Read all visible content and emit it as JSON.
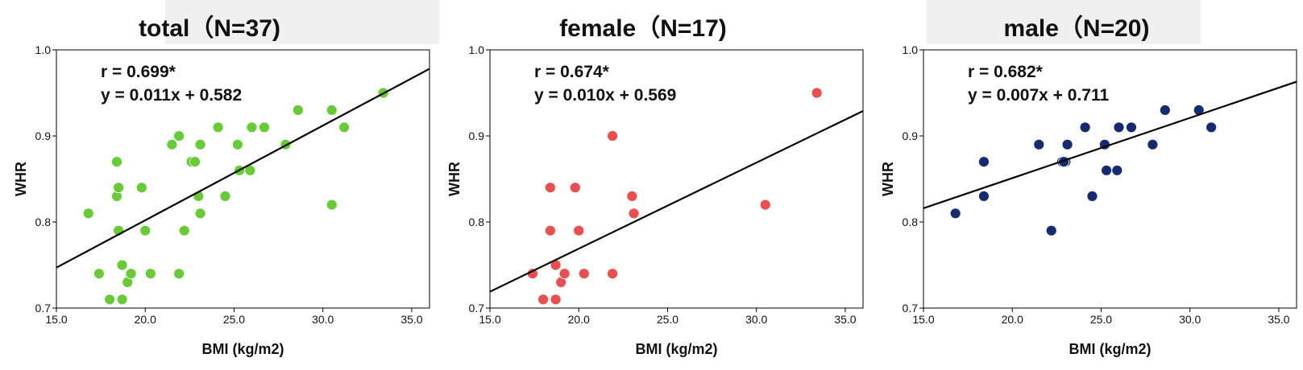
{
  "chart_data": [
    {
      "type": "scatter",
      "title": "total（N=37)",
      "xlabel": "BMI (kg/m2)",
      "ylabel": "WHR",
      "xlim": [
        15.0,
        36.0
      ],
      "ylim": [
        0.7,
        1.0
      ],
      "xticks": [
        15.0,
        20.0,
        25.0,
        30.0,
        35.0
      ],
      "yticks": [
        0.7,
        0.8,
        0.9,
        1.0
      ],
      "xtick_labels": [
        "15.0",
        "20.0",
        "25.0",
        "30.0",
        "35.0"
      ],
      "ytick_labels": [
        "0.7",
        "0.8",
        "0.9",
        "1.0"
      ],
      "annotation_r": "r = 0.699*",
      "annotation_eq": "y = 0.011x + 0.582",
      "fit": {
        "slope": 0.011,
        "intercept": 0.582
      },
      "color": "#66cc33",
      "x": [
        16.8,
        17.4,
        18.0,
        18.4,
        18.4,
        18.5,
        18.5,
        18.7,
        18.7,
        19.0,
        19.2,
        19.8,
        20.0,
        20.3,
        21.5,
        21.9,
        21.9,
        22.2,
        22.6,
        22.8,
        23.0,
        23.1,
        23.1,
        24.1,
        24.5,
        25.2,
        25.3,
        25.9,
        26.0,
        26.7,
        27.9,
        28.6,
        30.5,
        30.5,
        31.2,
        33.4,
        18.4
      ],
      "y": [
        0.81,
        0.74,
        0.71,
        0.87,
        0.83,
        0.84,
        0.79,
        0.75,
        0.71,
        0.73,
        0.74,
        0.84,
        0.79,
        0.74,
        0.89,
        0.9,
        0.74,
        0.79,
        0.87,
        0.87,
        0.83,
        0.81,
        0.89,
        0.91,
        0.83,
        0.89,
        0.86,
        0.86,
        0.91,
        0.91,
        0.89,
        0.93,
        0.93,
        0.82,
        0.91,
        0.95,
        0.87
      ]
    },
    {
      "type": "scatter",
      "title": "female（N=17)",
      "xlabel": "BMI (kg/m2)",
      "ylabel": "WHR",
      "xlim": [
        15.0,
        36.0
      ],
      "ylim": [
        0.7,
        1.0
      ],
      "xticks": [
        15.0,
        20.0,
        25.0,
        30.0,
        35.0
      ],
      "yticks": [
        0.7,
        0.8,
        0.9,
        1.0
      ],
      "xtick_labels": [
        "15.0",
        "20.0",
        "25.0",
        "30.0",
        "35.0"
      ],
      "ytick_labels": [
        "0.7",
        "0.8",
        "0.9",
        "1.0"
      ],
      "annotation_r": "r = 0.674*",
      "annotation_eq": "y = 0.010x + 0.569",
      "fit": {
        "slope": 0.01,
        "intercept": 0.569
      },
      "color": "#ee4d4d",
      "x": [
        17.4,
        18.0,
        18.4,
        18.4,
        18.7,
        18.7,
        19.0,
        19.2,
        19.8,
        20.0,
        20.3,
        21.9,
        21.9,
        23.0,
        23.1,
        30.5,
        33.4
      ],
      "y": [
        0.74,
        0.71,
        0.84,
        0.79,
        0.75,
        0.71,
        0.73,
        0.74,
        0.84,
        0.79,
        0.74,
        0.9,
        0.74,
        0.83,
        0.81,
        0.82,
        0.95
      ]
    },
    {
      "type": "scatter",
      "title": "male（N=20)",
      "xlabel": "BMI (kg/m2)",
      "ylabel": "WHR",
      "xlim": [
        15.0,
        36.0
      ],
      "ylim": [
        0.7,
        1.0
      ],
      "xticks": [
        15.0,
        20.0,
        25.0,
        30.0,
        35.0
      ],
      "yticks": [
        0.7,
        0.8,
        0.9,
        1.0
      ],
      "xtick_labels": [
        "15.0",
        "20.0",
        "25.0",
        "30.0",
        "35.0"
      ],
      "ytick_labels": [
        "0.7",
        "0.8",
        "0.9",
        "1.0"
      ],
      "annotation_r": "r = 0.682*",
      "annotation_eq": "y = 0.007x + 0.711",
      "fit": {
        "slope": 0.007,
        "intercept": 0.711
      },
      "color": "#142b74",
      "x": [
        16.8,
        18.4,
        18.4,
        21.5,
        22.2,
        22.8,
        23.0,
        23.1,
        24.1,
        24.5,
        25.2,
        25.3,
        25.9,
        26.0,
        26.7,
        27.9,
        28.6,
        30.5,
        31.2,
        22.9
      ],
      "y": [
        0.81,
        0.87,
        0.83,
        0.89,
        0.79,
        0.87,
        0.87,
        0.89,
        0.91,
        0.83,
        0.89,
        0.86,
        0.86,
        0.91,
        0.91,
        0.89,
        0.93,
        0.93,
        0.91,
        0.87
      ]
    }
  ]
}
